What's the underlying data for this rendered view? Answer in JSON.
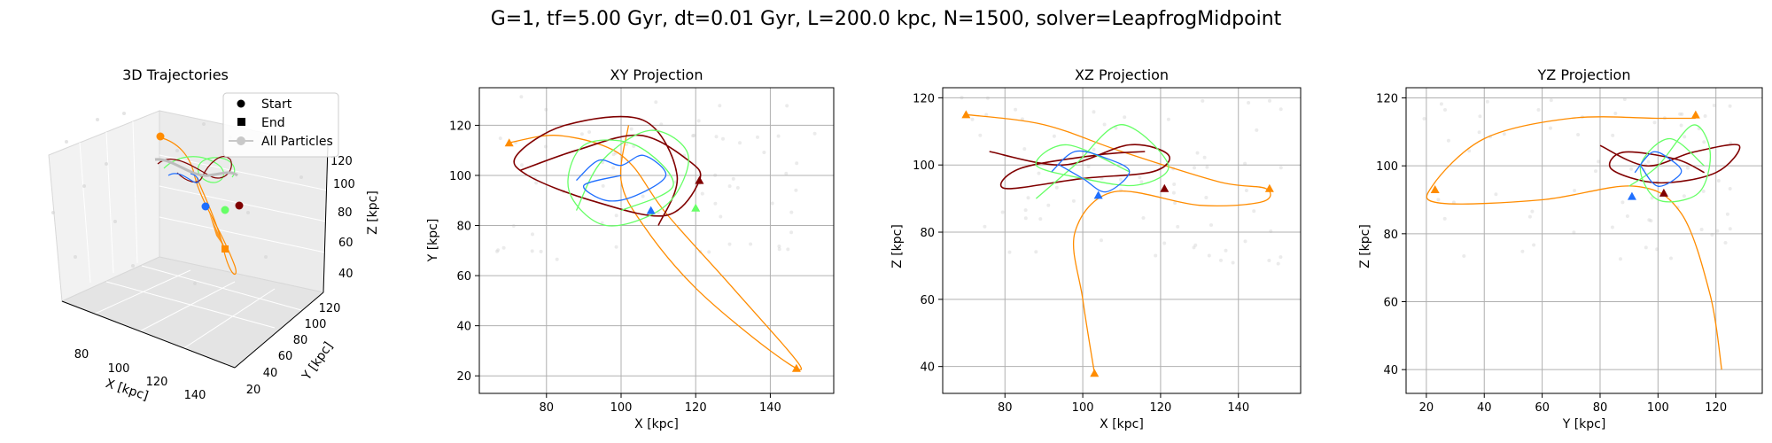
{
  "figure": {
    "suptitle": "G=1, tf=5.00 Gyr, dt=0.01 Gyr, L=200.0 kpc, N=1500, solver=LeapfrogMidpoint"
  },
  "colors": {
    "orange": "#ff8c00",
    "green": "#66ff66",
    "blue": "#1f6fff",
    "darkred": "#800000",
    "background_particles": "#d3d3d3",
    "grid": "#b0b0b0"
  },
  "chart_data": [
    {
      "type": "scatter",
      "subtype": "3d-line",
      "title": "3D Trajectories",
      "xlabel": "X [kpc]",
      "ylabel": "Y [kpc]",
      "zlabel": "Z [kpc]",
      "x_ticks": [
        "80",
        "100",
        "120",
        "140"
      ],
      "y_ticks": [
        "20",
        "40",
        "60",
        "80",
        "100",
        "120"
      ],
      "z_ticks": [
        "40",
        "60",
        "80",
        "100",
        "120"
      ],
      "legend": {
        "placement": "top-right",
        "entries": [
          {
            "label": "Start",
            "marker": "circle"
          },
          {
            "label": "End",
            "marker": "square"
          },
          {
            "label": "All Particles",
            "marker": "line-circle"
          }
        ]
      },
      "start_points": [
        {
          "color": "orange",
          "x": 103,
          "y": 40,
          "z": 118
        },
        {
          "color": "blue",
          "x": 100,
          "y": 98,
          "z": 100
        },
        {
          "color": "green",
          "x": 112,
          "y": 100,
          "z": 103
        },
        {
          "color": "darkred",
          "x": 114,
          "y": 108,
          "z": 103
        }
      ],
      "end_points": [
        {
          "color": "orange",
          "x": 103,
          "y": 118,
          "z": 42
        }
      ]
    },
    {
      "type": "line",
      "title": "XY Projection",
      "xlabel": "X [kpc]",
      "ylabel": "Y [kpc]",
      "xlim": [
        62,
        157
      ],
      "ylim": [
        13,
        135
      ],
      "x_ticks": [
        80,
        100,
        120,
        140
      ],
      "y_ticks": [
        20,
        40,
        60,
        80,
        100,
        120
      ],
      "grid": true,
      "series": [
        {
          "color": "orange",
          "x": [
            70,
            82,
            95,
            103,
            112,
            130,
            148,
            140,
            120,
            106,
            100,
            102
          ],
          "y": [
            113,
            116,
            112,
            104,
            85,
            55,
            24,
            30,
            55,
            80,
            98,
            120
          ]
        },
        {
          "color": "darkred",
          "x": [
            73,
            88,
            105,
            118,
            121,
            112,
            92,
            75,
            72,
            85,
            106,
            115,
            110
          ],
          "y": [
            102,
            110,
            116,
            106,
            98,
            84,
            90,
            100,
            108,
            120,
            122,
            100,
            80
          ]
        },
        {
          "color": "green",
          "x": [
            88,
            95,
            108,
            118,
            112,
            96,
            86,
            90,
            104,
            114,
            100
          ],
          "y": [
            86,
            106,
            118,
            108,
            88,
            80,
            94,
            112,
            112,
            96,
            86
          ]
        },
        {
          "color": "blue",
          "x": [
            88,
            94,
            100,
            106,
            112,
            104,
            96,
            90,
            100
          ],
          "y": [
            98,
            106,
            104,
            108,
            100,
            92,
            90,
            96,
            100
          ]
        }
      ],
      "markers": [
        {
          "color": "orange",
          "x": 70,
          "y": 113
        },
        {
          "color": "orange",
          "x": 147,
          "y": 23
        },
        {
          "color": "darkred",
          "x": 121,
          "y": 98
        },
        {
          "color": "green",
          "x": 120,
          "y": 87
        },
        {
          "color": "blue",
          "x": 108,
          "y": 86
        }
      ]
    },
    {
      "type": "line",
      "title": "XZ Projection",
      "xlabel": "X [kpc]",
      "ylabel": "Z [kpc]",
      "xlim": [
        64,
        156
      ],
      "ylim": [
        32,
        123
      ],
      "x_ticks": [
        80,
        100,
        120,
        140
      ],
      "y_ticks": [
        40,
        60,
        80,
        100,
        120
      ],
      "grid": true,
      "series": [
        {
          "color": "orange",
          "x": [
            70,
            90,
            110,
            135,
            147,
            146,
            130,
            108,
            98,
            100,
            103
          ],
          "y": [
            115,
            112,
            104,
            95,
            93,
            89,
            88,
            92,
            80,
            60,
            38
          ]
        },
        {
          "color": "darkred",
          "x": [
            76,
            95,
            112,
            122,
            118,
            100,
            80,
            84,
            104,
            116
          ],
          "y": [
            104,
            100,
            106,
            103,
            98,
            96,
            93,
            99,
            103,
            104
          ]
        },
        {
          "color": "green",
          "x": [
            88,
            98,
            110,
            122,
            114,
            100,
            88,
            96,
            112
          ],
          "y": [
            90,
            100,
            112,
            100,
            94,
            96,
            100,
            106,
            98
          ]
        },
        {
          "color": "blue",
          "x": [
            92,
            98,
            106,
            112,
            106,
            100,
            94
          ],
          "y": [
            98,
            104,
            102,
            98,
            92,
            96,
            100
          ]
        }
      ],
      "markers": [
        {
          "color": "orange",
          "x": 70,
          "y": 115
        },
        {
          "color": "orange",
          "x": 103,
          "y": 38
        },
        {
          "color": "orange",
          "x": 148,
          "y": 93
        },
        {
          "color": "blue",
          "x": 104,
          "y": 91
        },
        {
          "color": "darkred",
          "x": 121,
          "y": 93
        }
      ]
    },
    {
      "type": "line",
      "title": "YZ Projection",
      "xlabel": "Y [kpc]",
      "ylabel": "Z [kpc]",
      "xlim": [
        13,
        136
      ],
      "ylim": [
        33,
        123
      ],
      "x_ticks": [
        20,
        40,
        60,
        80,
        100,
        120
      ],
      "y_ticks": [
        40,
        60,
        80,
        100,
        120
      ],
      "grid": true,
      "series": [
        {
          "color": "orange",
          "x": [
            113,
            100,
            70,
            40,
            22,
            25,
            60,
            92,
            108,
            118,
            122
          ],
          "y": [
            114,
            114,
            114,
            108,
            94,
            89,
            90,
            94,
            86,
            62,
            40
          ]
        },
        {
          "color": "darkred",
          "x": [
            80,
            96,
            112,
            128,
            120,
            100,
            84,
            88,
            106,
            116
          ],
          "y": [
            106,
            100,
            104,
            106,
            98,
            95,
            99,
            104,
            102,
            98
          ]
        },
        {
          "color": "green",
          "x": [
            90,
            100,
            112,
            118,
            114,
            100,
            94,
            104,
            116
          ],
          "y": [
            94,
            100,
            112,
            104,
            92,
            90,
            100,
            108,
            100
          ]
        },
        {
          "color": "blue",
          "x": [
            92,
            98,
            104,
            108,
            100,
            94
          ],
          "y": [
            98,
            104,
            102,
            98,
            94,
            100
          ]
        }
      ],
      "markers": [
        {
          "color": "orange",
          "x": 23,
          "y": 93
        },
        {
          "color": "orange",
          "x": 113,
          "y": 115
        },
        {
          "color": "blue",
          "x": 91,
          "y": 91
        },
        {
          "color": "darkred",
          "x": 102,
          "y": 92
        }
      ]
    }
  ]
}
